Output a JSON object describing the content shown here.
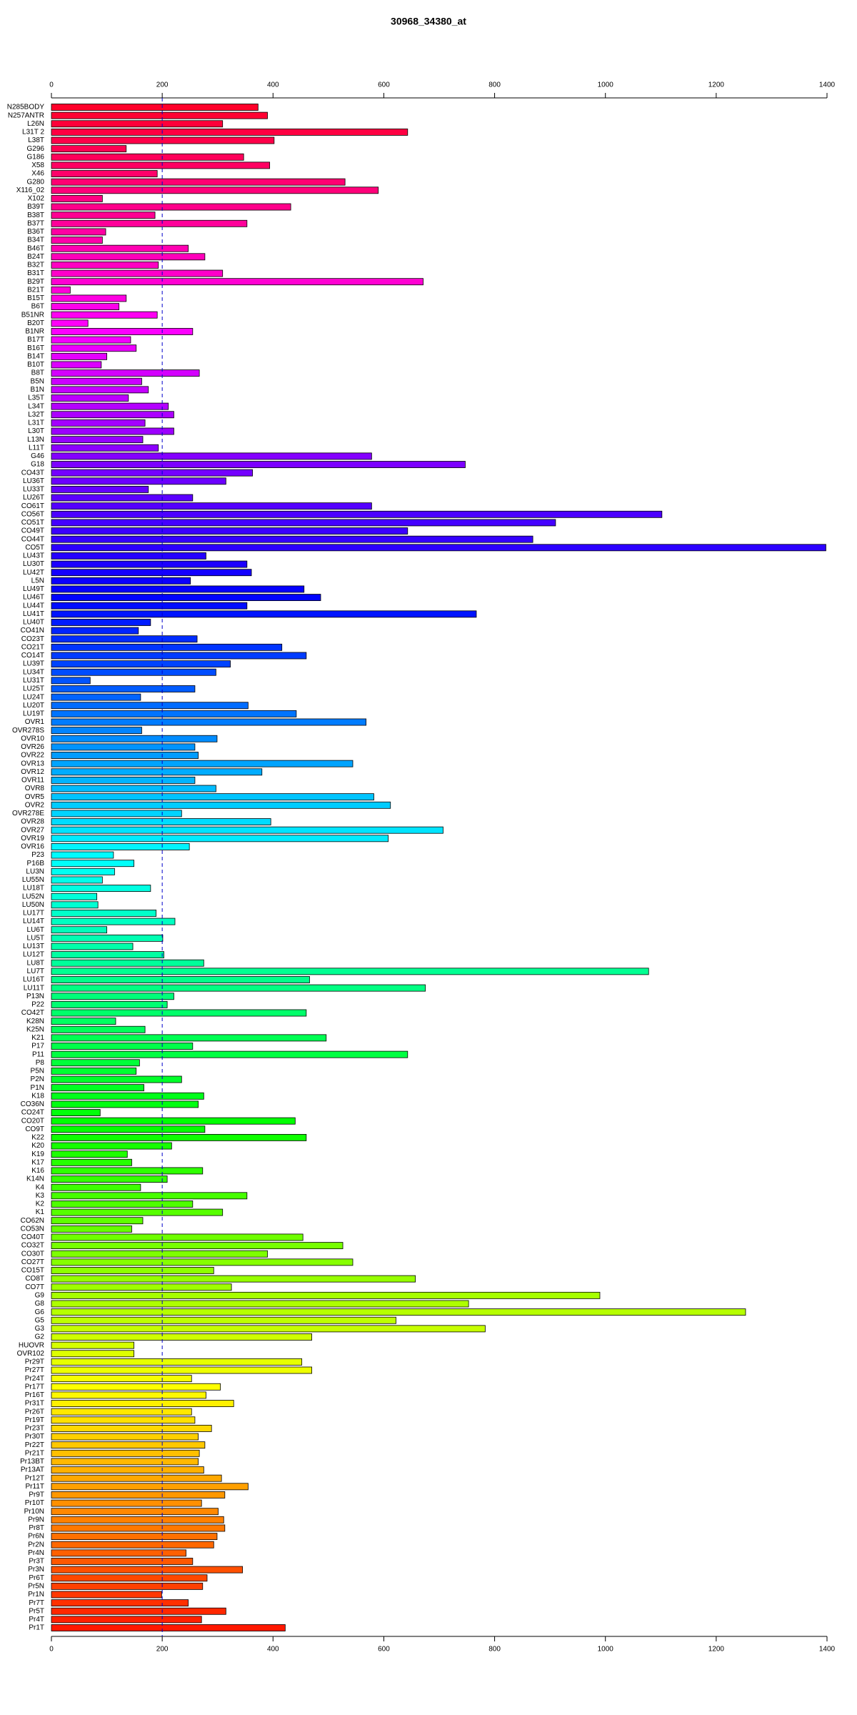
{
  "chart_data": {
    "type": "barh",
    "title": "30968_34380_at",
    "categories": [
      "N285BODY",
      "N257ANTR",
      "L26N",
      "L31T 2",
      "L38T",
      "G296",
      "G186",
      "X58",
      "X46",
      "G280",
      "X116_02",
      "X102",
      "B39T",
      "B38T",
      "B37T",
      "B36T",
      "B34T",
      "B46T",
      "B24T",
      "B32T",
      "B31T",
      "B29T",
      "B21T",
      "B15T",
      "B6T",
      "B51NR",
      "B20T",
      "B1NR",
      "B17T",
      "B16T",
      "B14T",
      "B10T",
      "B8T",
      "B5N",
      "B1N",
      "L35T",
      "L34T",
      "L32T",
      "L31T",
      "L30T",
      "L13N",
      "L11T",
      "G46",
      "G18",
      "CO43T",
      "LU36T",
      "LU33T",
      "LU26T",
      "CO61T",
      "CO56T",
      "CO51T",
      "CO49T",
      "CO44T",
      "CO5T",
      "LU43T",
      "LU30T",
      "LU42T",
      "L5N",
      "LU49T",
      "LU46T",
      "LU44T",
      "LU41T",
      "LU40T",
      "CO41N",
      "CO23T",
      "CO21T",
      "CO14T",
      "LU39T",
      "LU34T",
      "LU31T",
      "LU25T",
      "LU24T",
      "LU20T",
      "LU19T",
      "OVR1",
      "OVR278S",
      "OVR10",
      "OVR26",
      "OVR22",
      "OVR13",
      "OVR12",
      "OVR11",
      "OVR8",
      "OVR5",
      "OVR2",
      "OVR278E",
      "OVR28",
      "OVR27",
      "OVR19",
      "OVR16",
      "P23",
      "P16B",
      "LU3N",
      "LU55N",
      "LU18T",
      "LU52N",
      "LU50N",
      "LU17T",
      "LU14T",
      "LU6T",
      "LU5T",
      "LU13T",
      "LU12T",
      "LU8T",
      "LU7T",
      "LU16T",
      "LU11T",
      "P13N",
      "P22",
      "CO42T",
      "K28N",
      "K25N",
      "K21",
      "P17",
      "P11",
      "P8",
      "P5N",
      "P2N",
      "P1N",
      "K18",
      "CO36N",
      "CO24T",
      "CO20T",
      "CO9T",
      "K22",
      "K20",
      "K19",
      "K17",
      "K16",
      "K14N",
      "K4",
      "K3",
      "K2",
      "K1",
      "CO62N",
      "CO53N",
      "CO40T",
      "CO32T",
      "CO30T",
      "CO27T",
      "CO15T",
      "CO8T",
      "CO7T",
      "G9",
      "G8",
      "G6",
      "G5",
      "G3",
      "G2",
      "HUOVR",
      "OVR102",
      "Pr29T",
      "Pr27T",
      "Pr24T",
      "Pr17T",
      "Pr16T",
      "Pr31T",
      "Pr26T",
      "Pr19T",
      "Pr23T",
      "Pr30T",
      "Pr22T",
      "Pr21T",
      "Pr13BT",
      "Pr13AT",
      "Pr12T",
      "Pr11T",
      "Pr9T",
      "Pr10T",
      "Pr10N",
      "Pr9N",
      "Pr8T",
      "Pr6N",
      "Pr2N",
      "Pr4N",
      "Pr3T",
      "Pr3N",
      "Pr6T",
      "Pr5N",
      "Pr1N",
      "Pr7T",
      "Pr5T",
      "Pr4T",
      "Pr1T"
    ],
    "values": [
      373,
      390,
      309,
      643,
      402,
      135,
      347,
      394,
      191,
      530,
      590,
      92,
      432,
      187,
      353,
      98,
      92,
      247,
      277,
      193,
      309,
      671,
      34,
      135,
      122,
      191,
      66,
      255,
      143,
      153,
      100,
      90,
      267,
      163,
      175,
      139,
      211,
      221,
      169,
      221,
      165,
      193,
      578,
      747,
      363,
      315,
      175,
      255,
      578,
      1102,
      910,
      643,
      869,
      1398,
      279,
      353,
      361,
      251,
      456,
      486,
      353,
      767,
      179,
      157,
      263,
      416,
      460,
      323,
      297,
      70,
      259,
      161,
      355,
      442,
      568,
      163,
      299,
      259,
      265,
      544,
      380,
      259,
      297,
      582,
      612,
      235,
      396,
      707,
      608,
      249,
      112,
      149,
      114,
      92,
      179,
      82,
      84,
      189,
      223,
      100,
      201,
      147,
      203,
      275,
      1078,
      466,
      675,
      221,
      209,
      460,
      116,
      169,
      496,
      255,
      643,
      159,
      153,
      235,
      167,
      275,
      265,
      88,
      440,
      277,
      460,
      217,
      137,
      145,
      273,
      209,
      161,
      353,
      255,
      309,
      165,
      145,
      454,
      526,
      390,
      544,
      293,
      657,
      325,
      990,
      753,
      1253,
      622,
      783,
      470,
      149,
      149,
      452,
      470,
      253,
      305,
      279,
      329,
      253,
      259,
      289,
      265,
      277,
      267,
      265,
      275,
      307,
      355,
      313,
      271,
      301,
      311,
      313,
      299,
      293,
      243,
      255,
      345,
      281,
      273,
      199,
      247,
      315,
      271,
      422
    ],
    "colors": [
      "#ff002a",
      "#ff0032",
      "#ff003a",
      "#ff0042",
      "#ff004a",
      "#ff0052",
      "#ff005a",
      "#ff0062",
      "#ff006a",
      "#ff0072",
      "#ff007a",
      "#ff0082",
      "#ff008a",
      "#ff0092",
      "#ff009a",
      "#ff00a2",
      "#ff00aa",
      "#ff00b2",
      "#ff00ba",
      "#ff00c2",
      "#ff00ca",
      "#ff00d2",
      "#ff00da",
      "#ff00e2",
      "#ff00ea",
      "#ff00f2",
      "#ff00fa",
      "#fc00ff",
      "#f400ff",
      "#ec00ff",
      "#e400ff",
      "#dc00ff",
      "#d400ff",
      "#cc00ff",
      "#c400ff",
      "#bc00ff",
      "#b400ff",
      "#ac00ff",
      "#a400ff",
      "#9c00ff",
      "#9400ff",
      "#8c00ff",
      "#8400ff",
      "#7c00ff",
      "#7400ff",
      "#6c00ff",
      "#6400ff",
      "#5c00ff",
      "#5400ff",
      "#4c00ff",
      "#4400ff",
      "#3c00ff",
      "#3400ff",
      "#2c00ff",
      "#2400ff",
      "#1c00ff",
      "#1400ff",
      "#0c00ff",
      "#0400ff",
      "#0004ff",
      "#000cff",
      "#0014ff",
      "#001cff",
      "#0024ff",
      "#002cff",
      "#0034ff",
      "#003cff",
      "#0044ff",
      "#004cff",
      "#0054ff",
      "#005cff",
      "#0064ff",
      "#006cff",
      "#0074ff",
      "#007cff",
      "#0084ff",
      "#008cff",
      "#0094ff",
      "#009cff",
      "#00a4ff",
      "#00acff",
      "#00b4ff",
      "#00bcff",
      "#00c4ff",
      "#00ccff",
      "#00d4ff",
      "#00dcff",
      "#00e4ff",
      "#00ecff",
      "#00f4ff",
      "#00fcff",
      "#00fffa",
      "#00fff2",
      "#00ffea",
      "#00ffe2",
      "#00ffda",
      "#00ffd2",
      "#00ffca",
      "#00ffc2",
      "#00ffba",
      "#00ffb2",
      "#00ffaa",
      "#00ffa2",
      "#00ff9a",
      "#00ff92",
      "#00ff8a",
      "#00ff82",
      "#00ff7a",
      "#00ff72",
      "#00ff6a",
      "#00ff62",
      "#00ff5a",
      "#00ff52",
      "#00ff4a",
      "#00ff42",
      "#00ff3a",
      "#00ff32",
      "#00ff2a",
      "#00ff22",
      "#00ff1a",
      "#00ff12",
      "#00ff0a",
      "#00ff02",
      "#06ff00",
      "#0eff00",
      "#16ff00",
      "#1eff00",
      "#26ff00",
      "#2eff00",
      "#36ff00",
      "#3eff00",
      "#46ff00",
      "#4eff00",
      "#56ff00",
      "#5eff00",
      "#66ff00",
      "#6eff00",
      "#76ff00",
      "#7eff00",
      "#86ff00",
      "#8eff00",
      "#96ff00",
      "#9eff00",
      "#a6ff00",
      "#aeff00",
      "#b6ff00",
      "#beff00",
      "#c6ff00",
      "#ceff00",
      "#d6ff00",
      "#deff00",
      "#e6ff00",
      "#eeff00",
      "#f6ff00",
      "#feff00",
      "#fff800",
      "#fff000",
      "#ffe800",
      "#ffe000",
      "#ffd800",
      "#ffd000",
      "#ffc800",
      "#ffc000",
      "#ffb800",
      "#ffb000",
      "#ffa800",
      "#ffa000",
      "#ff9800",
      "#ff9000",
      "#ff8800",
      "#ff8000",
      "#ff7800",
      "#ff7000",
      "#ff6800",
      "#ff6000",
      "#ff5800",
      "#ff5000",
      "#ff4800",
      "#ff4000",
      "#ff3800",
      "#ff3000",
      "#ff2800",
      "#ff2000",
      "#ff1800"
    ],
    "xlim": [
      0,
      1400
    ],
    "xticks": [
      0,
      200,
      400,
      600,
      800,
      1000,
      1200,
      1400
    ],
    "reference_line": 200,
    "reference_line_color": "#0000cc"
  }
}
